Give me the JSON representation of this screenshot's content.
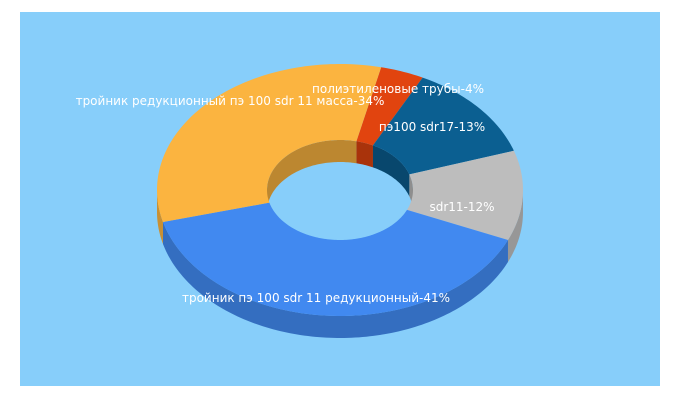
{
  "chart_data": {
    "type": "donut3d",
    "categories": [
      "тройник пэ 100 sdr 11 редукционный",
      "тройник редукционный пэ 100 sdr 11 масса",
      "пэ100 sdr17",
      "sdr11",
      "полиэтиленовые трубы"
    ],
    "values": [
      41,
      34,
      13,
      12,
      4
    ],
    "label_separator": "-",
    "value_labels": [
      "41%",
      "34%",
      "13%",
      "12%",
      "4%"
    ],
    "colors": [
      "#4189f0",
      "#fbb440",
      "#0b5f91",
      "#bdbdbd",
      "#e1440f"
    ]
  }
}
